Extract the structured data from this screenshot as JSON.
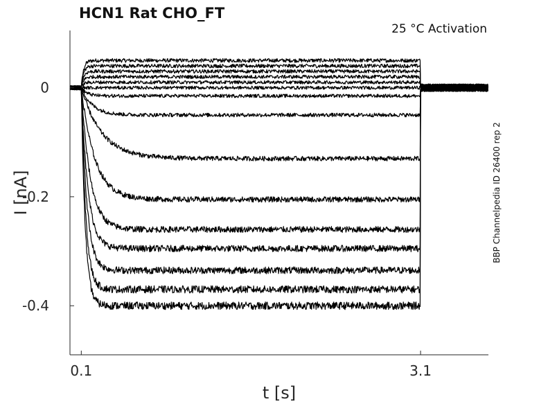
{
  "chart_data": {
    "type": "line",
    "title": "HCN1  Rat  CHO_FT",
    "annotation": "25 °C  Activation",
    "side_label": "BBP Channelpedia ID 26400 rep 2",
    "xlabel": "t [s]",
    "ylabel": "I [nA]",
    "xlim": [
      0,
      3.7
    ],
    "ylim": [
      -0.49,
      0.105
    ],
    "x_ticks": [
      0.1,
      3.1
    ],
    "x_tick_labels": [
      "0.1",
      "3.1"
    ],
    "y_ticks": [
      0,
      -0.2,
      -0.4
    ],
    "y_tick_labels": [
      "0",
      "-0.2",
      "-0.4"
    ],
    "stimulus": {
      "start": 0.1,
      "end": 3.1
    },
    "grid": false,
    "series": [
      {
        "steady": 0.05,
        "tau": 0.02
      },
      {
        "steady": 0.04,
        "tau": 0.02
      },
      {
        "steady": 0.03,
        "tau": 0.02
      },
      {
        "steady": 0.02,
        "tau": 0.02
      },
      {
        "steady": 0.01,
        "tau": 0.02
      },
      {
        "steady": 0.0,
        "tau": 0.03
      },
      {
        "steady": -0.015,
        "tau": 0.05
      },
      {
        "steady": -0.05,
        "tau": 0.1
      },
      {
        "steady": -0.13,
        "tau": 0.18
      },
      {
        "steady": -0.205,
        "tau": 0.12
      },
      {
        "steady": -0.26,
        "tau": 0.08
      },
      {
        "steady": -0.295,
        "tau": 0.06
      },
      {
        "steady": -0.335,
        "tau": 0.05
      },
      {
        "steady": -0.37,
        "tau": 0.04
      },
      {
        "steady": -0.4,
        "tau": 0.035
      }
    ]
  }
}
